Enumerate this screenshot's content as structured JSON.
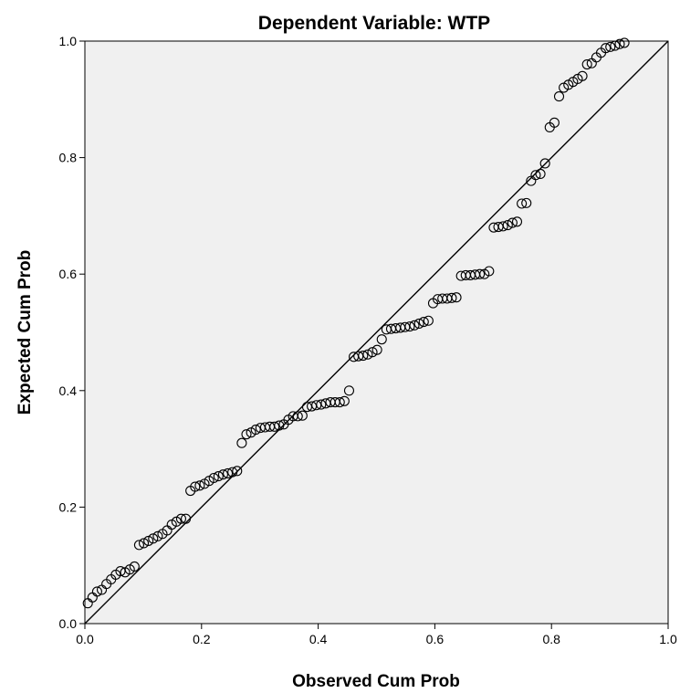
{
  "chart_data": {
    "type": "scatter",
    "title": "Dependent Variable: WTP",
    "xlabel": "Observed Cum Prob",
    "ylabel": "Expected Cum Prob",
    "xlim": [
      0,
      1
    ],
    "ylim": [
      0,
      1
    ],
    "x_ticks": [
      "0.0",
      "0.2",
      "0.4",
      "0.6",
      "0.8",
      "1.0"
    ],
    "y_ticks": [
      "0.0",
      "0.2",
      "0.4",
      "0.6",
      "0.8",
      "1.0"
    ],
    "grid": false,
    "reference_line": {
      "from": [
        0,
        0
      ],
      "to": [
        1,
        1
      ]
    },
    "colors": {
      "plot_background": "#f0f0f0",
      "marker_stroke": "#000000",
      "line": "#000000"
    },
    "points": [
      [
        0.005,
        0.035
      ],
      [
        0.013,
        0.045
      ],
      [
        0.021,
        0.055
      ],
      [
        0.029,
        0.058
      ],
      [
        0.037,
        0.068
      ],
      [
        0.045,
        0.076
      ],
      [
        0.053,
        0.084
      ],
      [
        0.061,
        0.09
      ],
      [
        0.069,
        0.088
      ],
      [
        0.077,
        0.093
      ],
      [
        0.085,
        0.098
      ],
      [
        0.093,
        0.135
      ],
      [
        0.101,
        0.138
      ],
      [
        0.109,
        0.142
      ],
      [
        0.117,
        0.146
      ],
      [
        0.125,
        0.15
      ],
      [
        0.133,
        0.154
      ],
      [
        0.141,
        0.16
      ],
      [
        0.149,
        0.17
      ],
      [
        0.157,
        0.175
      ],
      [
        0.165,
        0.18
      ],
      [
        0.173,
        0.18
      ],
      [
        0.181,
        0.228
      ],
      [
        0.189,
        0.235
      ],
      [
        0.197,
        0.237
      ],
      [
        0.205,
        0.24
      ],
      [
        0.213,
        0.245
      ],
      [
        0.221,
        0.25
      ],
      [
        0.229,
        0.253
      ],
      [
        0.237,
        0.256
      ],
      [
        0.245,
        0.258
      ],
      [
        0.253,
        0.26
      ],
      [
        0.261,
        0.262
      ],
      [
        0.269,
        0.31
      ],
      [
        0.277,
        0.325
      ],
      [
        0.285,
        0.328
      ],
      [
        0.293,
        0.333
      ],
      [
        0.301,
        0.336
      ],
      [
        0.309,
        0.337
      ],
      [
        0.317,
        0.338
      ],
      [
        0.325,
        0.338
      ],
      [
        0.333,
        0.34
      ],
      [
        0.341,
        0.342
      ],
      [
        0.349,
        0.35
      ],
      [
        0.357,
        0.356
      ],
      [
        0.365,
        0.356
      ],
      [
        0.373,
        0.357
      ],
      [
        0.381,
        0.372
      ],
      [
        0.389,
        0.373
      ],
      [
        0.397,
        0.375
      ],
      [
        0.405,
        0.376
      ],
      [
        0.413,
        0.378
      ],
      [
        0.421,
        0.38
      ],
      [
        0.429,
        0.38
      ],
      [
        0.437,
        0.38
      ],
      [
        0.445,
        0.382
      ],
      [
        0.453,
        0.4
      ],
      [
        0.461,
        0.458
      ],
      [
        0.469,
        0.459
      ],
      [
        0.477,
        0.46
      ],
      [
        0.485,
        0.462
      ],
      [
        0.493,
        0.466
      ],
      [
        0.501,
        0.47
      ],
      [
        0.509,
        0.488
      ],
      [
        0.517,
        0.505
      ],
      [
        0.525,
        0.506
      ],
      [
        0.533,
        0.507
      ],
      [
        0.541,
        0.508
      ],
      [
        0.549,
        0.509
      ],
      [
        0.557,
        0.51
      ],
      [
        0.565,
        0.512
      ],
      [
        0.573,
        0.515
      ],
      [
        0.581,
        0.518
      ],
      [
        0.589,
        0.52
      ],
      [
        0.597,
        0.55
      ],
      [
        0.605,
        0.557
      ],
      [
        0.613,
        0.558
      ],
      [
        0.621,
        0.558
      ],
      [
        0.629,
        0.559
      ],
      [
        0.637,
        0.56
      ],
      [
        0.645,
        0.597
      ],
      [
        0.653,
        0.598
      ],
      [
        0.661,
        0.598
      ],
      [
        0.669,
        0.599
      ],
      [
        0.677,
        0.6
      ],
      [
        0.685,
        0.6
      ],
      [
        0.693,
        0.605
      ],
      [
        0.701,
        0.68
      ],
      [
        0.709,
        0.681
      ],
      [
        0.717,
        0.682
      ],
      [
        0.725,
        0.684
      ],
      [
        0.733,
        0.688
      ],
      [
        0.741,
        0.69
      ],
      [
        0.749,
        0.721
      ],
      [
        0.757,
        0.722
      ],
      [
        0.765,
        0.76
      ],
      [
        0.773,
        0.77
      ],
      [
        0.781,
        0.772
      ],
      [
        0.789,
        0.79
      ],
      [
        0.797,
        0.852
      ],
      [
        0.805,
        0.86
      ],
      [
        0.813,
        0.905
      ],
      [
        0.821,
        0.92
      ],
      [
        0.829,
        0.925
      ],
      [
        0.837,
        0.93
      ],
      [
        0.845,
        0.935
      ],
      [
        0.853,
        0.94
      ],
      [
        0.861,
        0.96
      ],
      [
        0.869,
        0.962
      ],
      [
        0.877,
        0.972
      ],
      [
        0.885,
        0.98
      ],
      [
        0.893,
        0.988
      ],
      [
        0.901,
        0.99
      ],
      [
        0.909,
        0.992
      ],
      [
        0.917,
        0.995
      ],
      [
        0.925,
        0.997
      ]
    ]
  }
}
